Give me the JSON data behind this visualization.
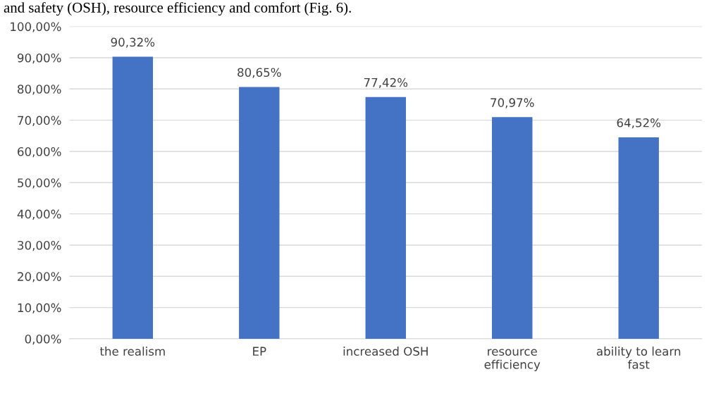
{
  "chart_data": {
    "type": "bar",
    "categories": [
      "the realism",
      "EP",
      "increased OSH",
      "resource\nefficiency",
      "ability to learn\nfast"
    ],
    "values": [
      90.32,
      80.65,
      77.42,
      70.97,
      64.52
    ],
    "value_labels": [
      "90,32%",
      "80,65%",
      "77,42%",
      "70,97%",
      "64,52%"
    ],
    "color": "#4472c4",
    "ylim": [
      0,
      100
    ],
    "yticks": [
      {
        "value": 0,
        "label": "0,00%"
      },
      {
        "value": 10,
        "label": "10,00%"
      },
      {
        "value": 20,
        "label": "20,00%"
      },
      {
        "value": 30,
        "label": "30,00%"
      },
      {
        "value": 40,
        "label": "40,00%"
      },
      {
        "value": 50,
        "label": "50,00%"
      },
      {
        "value": 60,
        "label": "60,00%"
      },
      {
        "value": 70,
        "label": "70,00%"
      },
      {
        "value": 80,
        "label": "80,00%"
      },
      {
        "value": 90,
        "label": "90,00%"
      },
      {
        "value": 100,
        "label": "100,00%"
      }
    ],
    "grid": "y",
    "annotations": [
      "and safety (OSH), resource efficiency and comfort (Fig. 6)."
    ]
  }
}
